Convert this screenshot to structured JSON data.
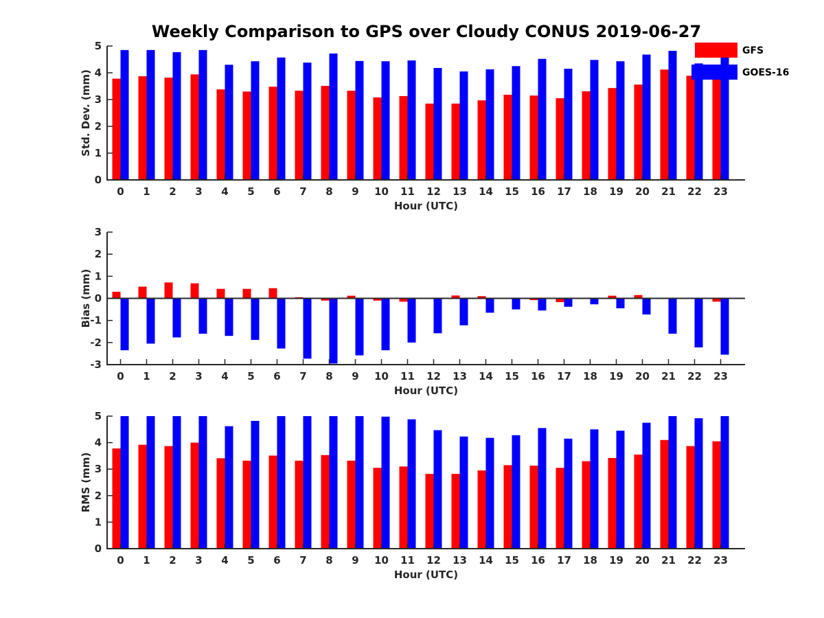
{
  "figure": {
    "title": "Weekly Comparison to GPS over Cloudy CONUS 2019-06-27"
  },
  "legend": {
    "placement": "top-right",
    "items": [
      {
        "label": "GFS",
        "color": "#ff0000"
      },
      {
        "label": "GOES-16",
        "color": "#0000ff"
      }
    ]
  },
  "chart_data": [
    {
      "type": "bar",
      "title": "Weekly Comparison to GPS over Cloudy CONUS 2019-06-27",
      "xlabel": "Hour (UTC)",
      "ylabel": "Std. Dev. (mm)",
      "ylim": [
        0,
        5
      ],
      "yticks": [
        0,
        1,
        2,
        3,
        4,
        5
      ],
      "categories": [
        "0",
        "1",
        "2",
        "3",
        "4",
        "5",
        "6",
        "7",
        "8",
        "9",
        "10",
        "11",
        "12",
        "13",
        "14",
        "15",
        "16",
        "17",
        "18",
        "19",
        "20",
        "21",
        "22",
        "23"
      ],
      "series": [
        {
          "name": "GFS",
          "color": "#ff0000",
          "values": [
            3.78,
            3.87,
            3.82,
            3.94,
            3.38,
            3.3,
            3.48,
            3.33,
            3.51,
            3.33,
            3.08,
            3.13,
            2.85,
            2.85,
            2.97,
            3.18,
            3.15,
            3.05,
            3.31,
            3.43,
            3.56,
            4.12,
            3.89,
            3.85
          ]
        },
        {
          "name": "GOES-16",
          "color": "#0000ff",
          "values": [
            4.85,
            4.85,
            4.77,
            4.85,
            4.3,
            4.43,
            4.57,
            4.38,
            4.72,
            4.44,
            4.43,
            4.46,
            4.18,
            4.05,
            4.13,
            4.25,
            4.52,
            4.15,
            4.48,
            4.43,
            4.68,
            4.82,
            4.35,
            4.7
          ]
        }
      ],
      "grid": false
    },
    {
      "type": "bar",
      "xlabel": "Hour (UTC)",
      "ylabel": "Bias (mm)",
      "ylim": [
        -3,
        3
      ],
      "yticks": [
        -3,
        -2,
        -1,
        0,
        1,
        2,
        3
      ],
      "categories": [
        "0",
        "1",
        "2",
        "3",
        "4",
        "5",
        "6",
        "7",
        "8",
        "9",
        "10",
        "11",
        "12",
        "13",
        "14",
        "15",
        "16",
        "17",
        "18",
        "19",
        "20",
        "21",
        "22",
        "23"
      ],
      "series": [
        {
          "name": "GFS",
          "color": "#ff0000",
          "values": [
            0.3,
            0.53,
            0.72,
            0.68,
            0.43,
            0.43,
            0.46,
            0.05,
            -0.1,
            0.12,
            -0.1,
            -0.15,
            0,
            0.13,
            0.1,
            -0.03,
            -0.08,
            -0.17,
            0.02,
            0.12,
            0.15,
            -0.03,
            0,
            -0.15
          ]
        },
        {
          "name": "GOES-16",
          "color": "#0000ff",
          "values": [
            -2.35,
            -2.05,
            -1.77,
            -1.6,
            -1.7,
            -1.88,
            -2.27,
            -2.73,
            -2.95,
            -2.58,
            -2.35,
            -2.0,
            -1.58,
            -1.22,
            -0.65,
            -0.5,
            -0.55,
            -0.38,
            -0.27,
            -0.45,
            -0.73,
            -1.6,
            -2.22,
            -2.55
          ]
        }
      ],
      "grid": false
    },
    {
      "type": "bar",
      "xlabel": "Hour (UTC)",
      "ylabel": "RMS (mm)",
      "ylim": [
        0,
        5
      ],
      "yticks": [
        0,
        1,
        2,
        3,
        4,
        5
      ],
      "categories": [
        "0",
        "1",
        "2",
        "3",
        "4",
        "5",
        "6",
        "7",
        "8",
        "9",
        "10",
        "11",
        "12",
        "13",
        "14",
        "15",
        "16",
        "17",
        "18",
        "19",
        "20",
        "21",
        "22",
        "23"
      ],
      "series": [
        {
          "name": "GFS",
          "color": "#ff0000",
          "values": [
            3.78,
            3.92,
            3.87,
            4.0,
            3.41,
            3.32,
            3.51,
            3.32,
            3.53,
            3.32,
            3.05,
            3.1,
            2.82,
            2.82,
            2.95,
            3.15,
            3.13,
            3.05,
            3.3,
            3.42,
            3.55,
            4.1,
            3.87,
            4.05
          ]
        },
        {
          "name": "GOES-16",
          "color": "#0000ff",
          "values": [
            5.0,
            5.0,
            5.0,
            5.0,
            4.62,
            4.82,
            5.0,
            5.0,
            5.0,
            5.0,
            4.98,
            4.88,
            4.47,
            4.23,
            4.18,
            4.28,
            4.55,
            4.15,
            4.5,
            4.45,
            4.75,
            5.0,
            4.92,
            5.0
          ]
        }
      ],
      "grid": false
    }
  ]
}
